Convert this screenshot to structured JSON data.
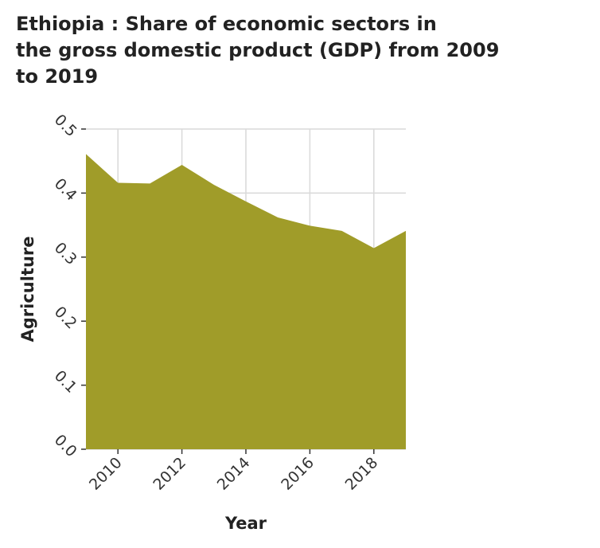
{
  "chart_data": {
    "type": "area",
    "title_lines": [
      "Ethiopia : Share of economic sectors in",
      "the gross domestic product (GDP) from 2009",
      "to 2019"
    ],
    "xlabel": "Year",
    "ylabel": "Agriculture",
    "x": [
      2009,
      2010,
      2011,
      2012,
      2013,
      2014,
      2015,
      2016,
      2017,
      2018,
      2019
    ],
    "values": [
      0.461,
      0.416,
      0.415,
      0.444,
      0.413,
      0.387,
      0.362,
      0.349,
      0.341,
      0.314,
      0.341
    ],
    "xlim": [
      2009,
      2019
    ],
    "ylim": [
      0,
      0.5
    ],
    "xticks": [
      2010,
      2012,
      2014,
      2016,
      2018
    ],
    "yticks": [
      "0.0",
      "0.1",
      "0.2",
      "0.3",
      "0.4",
      "0.5"
    ],
    "grid": true,
    "fill_color": "#a09c29"
  }
}
